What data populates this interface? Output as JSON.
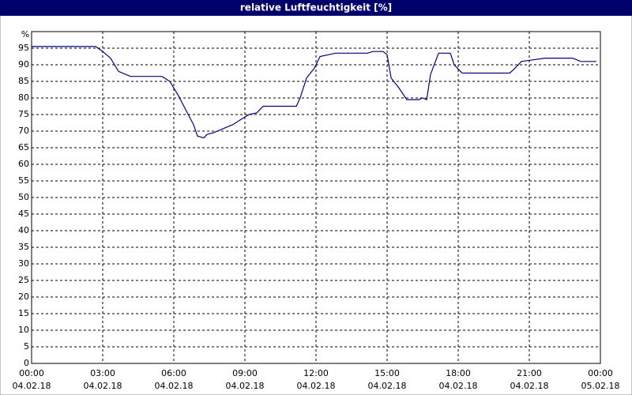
{
  "chart_data": {
    "type": "line",
    "title": "relative Luftfeuchtigkeit [%]",
    "y_unit": "%",
    "color": "#000080",
    "grid": true,
    "x": [
      0,
      2.7,
      3,
      3.33,
      3.67,
      4.17,
      5.5,
      5.83,
      6.17,
      6.83,
      7,
      7.27,
      7.4,
      7.67,
      8,
      8.5,
      8.83,
      9.17,
      9.5,
      9.77,
      10.17,
      11.17,
      11.33,
      11.6,
      11.93,
      12.17,
      12.5,
      12.83,
      14.17,
      14.4,
      14.83,
      15,
      15.17,
      15.5,
      15.83,
      16.33,
      16.5,
      16.67,
      16.83,
      17.17,
      17.67,
      17.83,
      18.17,
      20.17,
      20.33,
      20.67,
      21.17,
      21.67,
      22.83,
      23.17,
      23.83
    ],
    "series": [
      {
        "name": "relative Luftfeuchtigkeit",
        "color": "#000080",
        "values": [
          95.5,
          95.5,
          94,
          92,
          88,
          86.5,
          86.5,
          85,
          81,
          72,
          68.5,
          68,
          69,
          69.5,
          70.5,
          72,
          73.5,
          75,
          75.5,
          77.5,
          77.5,
          77.5,
          80,
          86,
          89,
          92.5,
          93,
          93.5,
          93.5,
          94,
          94,
          93,
          86,
          83,
          79.5,
          79.5,
          80,
          79.5,
          87,
          93.5,
          93.5,
          90,
          87.5,
          87.5,
          88.5,
          91,
          91.5,
          92,
          92,
          91,
          91
        ]
      }
    ],
    "xlim": [
      0,
      24
    ],
    "ylim": [
      0,
      100
    ],
    "yticks": [
      0,
      5,
      10,
      15,
      20,
      25,
      30,
      35,
      40,
      45,
      50,
      55,
      60,
      65,
      70,
      75,
      80,
      85,
      90,
      95
    ],
    "xticks": [
      {
        "value": 0,
        "label": "00:00"
      },
      {
        "value": 3,
        "label": "03:00"
      },
      {
        "value": 6,
        "label": "06:00"
      },
      {
        "value": 9,
        "label": "09:00"
      },
      {
        "value": 12,
        "label": "12:00"
      },
      {
        "value": 15,
        "label": "15:00"
      },
      {
        "value": 18,
        "label": "18:00"
      },
      {
        "value": 21,
        "label": "21:00"
      },
      {
        "value": 24,
        "label": "00:00"
      }
    ],
    "xtick_dates": [
      "04.02.18",
      "04.02.18",
      "04.02.18",
      "04.02.18",
      "04.02.18",
      "04.02.18",
      "04.02.18",
      "04.02.18",
      "05.02.18"
    ]
  }
}
